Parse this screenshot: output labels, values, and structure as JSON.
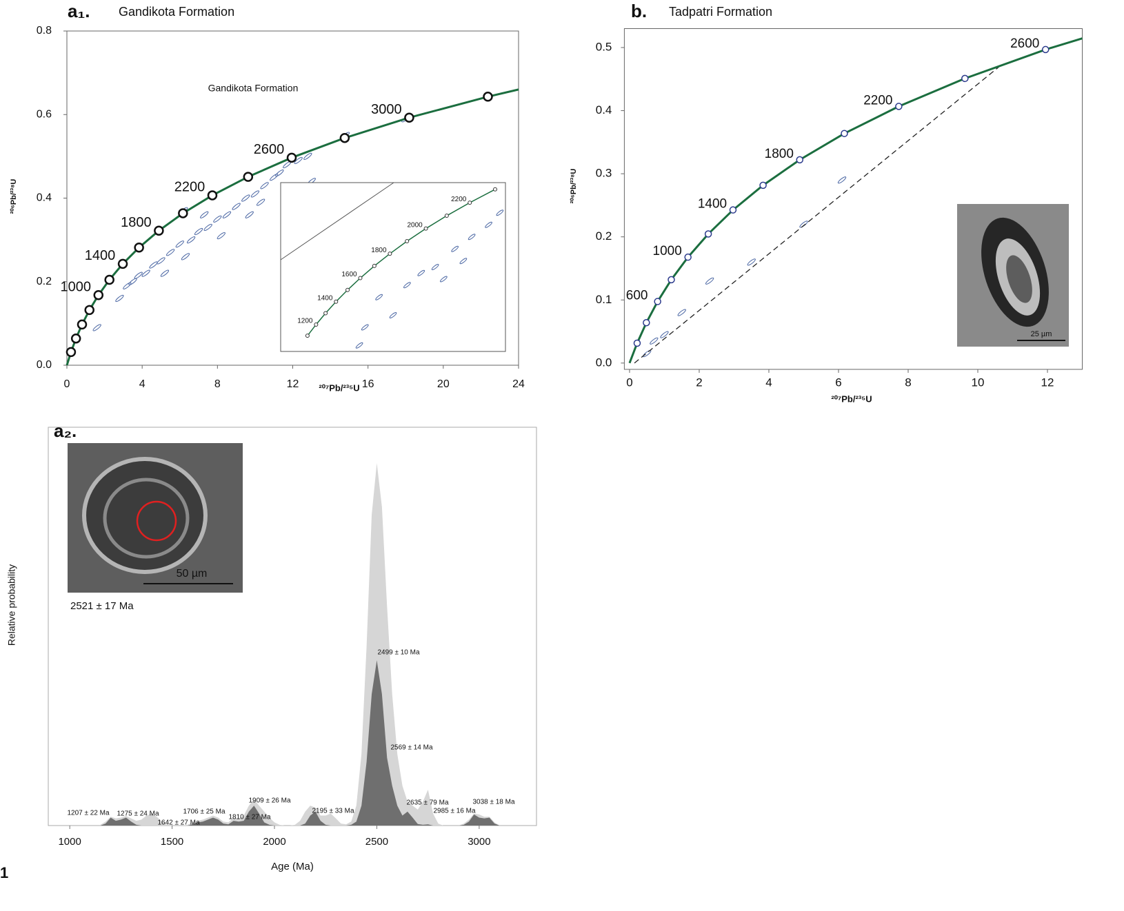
{
  "figure_label": "1",
  "chart_data": [
    {
      "type": "concordia",
      "panel_label": "a₁.",
      "title": "Gandikota Formation",
      "annotation": "Gandikota Formation",
      "xlabel": "²⁰⁷Pb/²³⁵U",
      "ylabel": "²⁰⁶Pb/²³⁸U",
      "xlim": [
        0,
        24
      ],
      "xticks": [
        0,
        4,
        8,
        12,
        16,
        20,
        24
      ],
      "ylim": [
        0,
        0.8
      ],
      "yticks": [
        {
          "value": 0,
          "label": "0.0"
        },
        0.2,
        0.4,
        0.6,
        0.8
      ],
      "color": "#1b6e3f",
      "marker_color": "#111111",
      "spot_color": "#4a66a3",
      "curve": {
        "x": [
          0,
          0.2177,
          0.4828,
          0.8056,
          1.1987,
          1.6775,
          2.2604,
          2.97,
          3.834,
          4.887,
          6.168,
          7.73,
          9.63,
          11.945,
          14.762,
          18.19,
          22.37,
          24
        ],
        "values": [
          0,
          0.0315,
          0.064,
          0.0975,
          0.1321,
          0.1678,
          0.2046,
          0.2426,
          0.2817,
          0.3221,
          0.3638,
          0.4067,
          0.451,
          0.4968,
          0.544,
          0.5926,
          0.6428,
          0.66
        ]
      },
      "markers": {
        "x": [
          0.2177,
          0.4828,
          0.8056,
          1.1987,
          1.6775,
          2.2604,
          2.97,
          3.834,
          4.887,
          6.168,
          7.73,
          9.63,
          11.945,
          14.762,
          18.19,
          22.37
        ],
        "values": [
          0.0315,
          0.064,
          0.0975,
          0.1321,
          0.1678,
          0.2046,
          0.2426,
          0.2817,
          0.3221,
          0.3638,
          0.4067,
          0.451,
          0.4968,
          0.544,
          0.5926,
          0.6428
        ],
        "labels": [
          null,
          null,
          null,
          null,
          1000,
          null,
          1400,
          null,
          1800,
          null,
          2200,
          null,
          2600,
          null,
          3000,
          null
        ]
      },
      "spots": {
        "x": [
          3.2,
          3.5,
          3.8,
          4.2,
          4.6,
          5.0,
          5.5,
          6.0,
          6.6,
          7.0,
          7.5,
          8.0,
          8.5,
          9.0,
          9.5,
          10.0,
          10.5,
          11.0,
          11.3,
          11.7,
          12.3,
          12.8,
          13.0,
          10.3,
          9.7,
          8.2,
          6.3,
          5.2,
          2.8,
          1.6,
          14.8,
          18.0,
          7.3,
          6.2
        ],
        "values": [
          0.19,
          0.2,
          0.215,
          0.22,
          0.24,
          0.25,
          0.27,
          0.29,
          0.3,
          0.32,
          0.33,
          0.35,
          0.36,
          0.38,
          0.4,
          0.41,
          0.43,
          0.45,
          0.46,
          0.48,
          0.49,
          0.5,
          0.44,
          0.39,
          0.36,
          0.31,
          0.26,
          0.22,
          0.16,
          0.09,
          0.55,
          0.59,
          0.36,
          0.37
        ]
      },
      "inset": {
        "xlim": [
          1,
          9
        ],
        "ylim": [
          0.16,
          0.44
        ],
        "x": [
          1.9545,
          2.2604,
          2.5978,
          2.97,
          3.3813,
          3.834,
          4.3346,
          4.887,
          5.4961,
          6.168,
          6.9107,
          7.73,
          8.6326
        ],
        "values": [
          0.1861,
          0.2046,
          0.2234,
          0.2426,
          0.262,
          0.2817,
          0.3018,
          0.3221,
          0.3428,
          0.3638,
          0.3851,
          0.4067,
          0.4288
        ],
        "labels": [
          null,
          1200,
          null,
          1400,
          null,
          1600,
          null,
          1800,
          null,
          2000,
          null,
          2200,
          null
        ],
        "spots": {
          "x": [
            4.5,
            5.5,
            6.0,
            6.5,
            7.2,
            7.8,
            8.4,
            5.0,
            4.0,
            6.8,
            3.8,
            8.8,
            7.5
          ],
          "values": [
            0.25,
            0.27,
            0.29,
            0.3,
            0.33,
            0.35,
            0.37,
            0.22,
            0.2,
            0.28,
            0.17,
            0.39,
            0.31
          ]
        }
      }
    },
    {
      "type": "concordia",
      "panel_label": "b.",
      "title": "Tadpatri Formation",
      "xlabel": "²⁰⁷Pb/²³⁵U",
      "ylabel": "²⁰⁶Pb/²³⁸U",
      "xlim": [
        -0.15,
        13
      ],
      "xticks": [
        0,
        2,
        4,
        6,
        8,
        10,
        12
      ],
      "ylim": [
        -0.01,
        0.53
      ],
      "yticks": [
        {
          "value": 0,
          "label": "0.0"
        },
        0.1,
        0.2,
        0.3,
        0.4,
        0.5
      ],
      "color": "#1b6e3f",
      "marker_color": "#2b3a8c",
      "spot_color": "#4a66a3",
      "curve": {
        "x": [
          0,
          0.2177,
          0.4828,
          0.8056,
          1.1987,
          1.6775,
          2.2604,
          2.97,
          3.834,
          4.887,
          6.168,
          7.73,
          9.63,
          11.945,
          13
        ],
        "values": [
          0,
          0.0315,
          0.064,
          0.0975,
          0.1321,
          0.1678,
          0.2046,
          0.2426,
          0.2817,
          0.3221,
          0.3638,
          0.4067,
          0.451,
          0.4968,
          0.5145
        ]
      },
      "markers": {
        "x": [
          0.2177,
          0.4828,
          0.8056,
          1.1987,
          1.6775,
          2.2604,
          2.97,
          3.834,
          4.887,
          6.168,
          7.73,
          9.63,
          11.945
        ],
        "values": [
          0.0315,
          0.064,
          0.0975,
          0.1321,
          0.1678,
          0.2046,
          0.2426,
          0.2817,
          0.3221,
          0.3638,
          0.4067,
          0.451,
          0.4968
        ],
        "labels": [
          null,
          null,
          600,
          null,
          1000,
          null,
          1400,
          null,
          1800,
          null,
          2200,
          null,
          2600
        ]
      },
      "discordia": {
        "x": [
          0.14,
          10.6
        ],
        "values": [
          0.0,
          0.469
        ]
      },
      "spots": {
        "x": [
          6.1,
          5.0,
          3.5,
          2.3,
          1.5,
          1.0,
          0.7,
          0.5
        ],
        "values": [
          0.29,
          0.22,
          0.16,
          0.13,
          0.08,
          0.045,
          0.035,
          0.015
        ]
      },
      "scale_bar": "25 µm"
    },
    {
      "type": "area",
      "panel_label": "a₂.",
      "xlabel": "Age (Ma)",
      "ylabel": "Relative probability",
      "xlim": [
        895,
        3280
      ],
      "xticks": [
        1000,
        1500,
        2000,
        2500,
        3000
      ],
      "ylim": [
        0,
        1
      ],
      "x": [
        1150,
        1175,
        1200,
        1225,
        1250,
        1275,
        1300,
        1325,
        1350,
        1375,
        1400,
        1425,
        1450,
        1475,
        1500,
        1525,
        1550,
        1575,
        1600,
        1625,
        1650,
        1675,
        1700,
        1725,
        1750,
        1775,
        1800,
        1825,
        1850,
        1875,
        1900,
        1925,
        1950,
        1975,
        2000,
        2025,
        2050,
        2075,
        2100,
        2125,
        2150,
        2175,
        2200,
        2225,
        2250,
        2275,
        2300,
        2325,
        2350,
        2375,
        2400,
        2425,
        2450,
        2475,
        2500,
        2525,
        2550,
        2575,
        2600,
        2625,
        2650,
        2675,
        2700,
        2725,
        2750,
        2775,
        2800,
        2825,
        2850,
        2875,
        2900,
        2925,
        2950,
        2975,
        3000,
        3025,
        3050,
        3075,
        3100
      ],
      "series": [
        {
          "color": "#d6d6d6",
          "values": [
            0.002,
            0.01,
            0.022,
            0.018,
            0.02,
            0.024,
            0.018,
            0.012,
            0.015,
            0.025,
            0.03,
            0.022,
            0.01,
            0.003,
            0,
            0,
            0,
            0.002,
            0.008,
            0.012,
            0.015,
            0.02,
            0.025,
            0.02,
            0.01,
            0.008,
            0.02,
            0.018,
            0.025,
            0.05,
            0.065,
            0.05,
            0.035,
            0.02,
            0.008,
            0.002,
            0,
            0,
            0.002,
            0.012,
            0.035,
            0.05,
            0.045,
            0.025,
            0.025,
            0.03,
            0.018,
            0.005,
            0.003,
            0.01,
            0.05,
            0.18,
            0.45,
            0.78,
            0.91,
            0.8,
            0.55,
            0.33,
            0.18,
            0.1,
            0.06,
            0.05,
            0.04,
            0.06,
            0.09,
            0.03,
            0.005,
            0,
            0,
            0,
            0,
            0.005,
            0.015,
            0.03,
            0.028,
            0.022,
            0.022,
            0.008,
            0
          ]
        },
        {
          "color": "#6f6f6f",
          "values": [
            0,
            0.005,
            0.02,
            0.012,
            0.015,
            0.02,
            0.01,
            0.002,
            0,
            0,
            0,
            0,
            0,
            0,
            0,
            0,
            0,
            0,
            0.003,
            0.008,
            0.01,
            0.015,
            0.02,
            0.015,
            0.005,
            0.003,
            0.012,
            0.01,
            0.012,
            0.035,
            0.05,
            0.03,
            0.008,
            0.002,
            0,
            0,
            0,
            0,
            0,
            0,
            0.005,
            0.025,
            0.035,
            0.012,
            0.002,
            0,
            0,
            0,
            0,
            0.002,
            0.01,
            0.05,
            0.16,
            0.33,
            0.415,
            0.33,
            0.17,
            0.1,
            0.05,
            0.025,
            0.035,
            0.02,
            0.004,
            0.002,
            0.003,
            0,
            0,
            0,
            0,
            0,
            0,
            0.002,
            0.01,
            0.028,
            0.02,
            0.018,
            0.02,
            0.005,
            0
          ]
        }
      ],
      "annotations": [
        "1207 ± 22 Ma",
        "1275 ± 24 Ma",
        "1642 ± 27 Ma",
        "1706 ± 25 Ma",
        "1810 ± 27 Ma",
        "1909 ± 26 Ma",
        "2195 ± 33 Ma",
        "2499 ± 10 Ma",
        "2569 ± 14 Ma",
        "2635 ± 79 Ma",
        "2985 ± 16 Ma",
        "3038 ± 18 Ma"
      ],
      "image_caption": "2521 ± 17 Ma",
      "scale_bar": "50 µm"
    }
  ]
}
